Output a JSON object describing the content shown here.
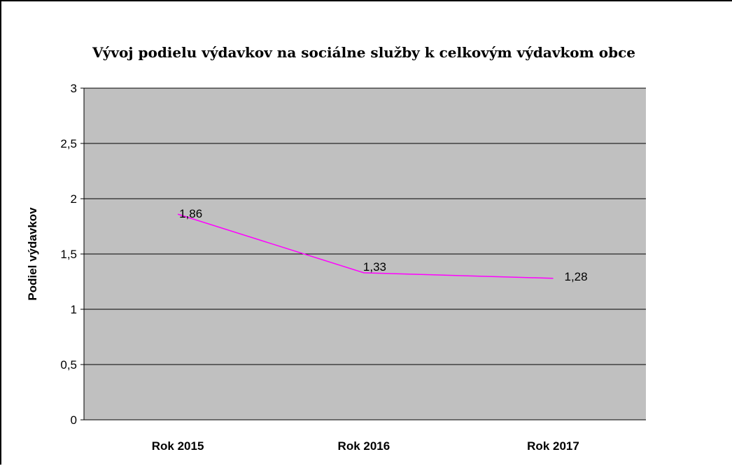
{
  "chart_data": {
    "type": "line",
    "title": "Vývoj podielu výdavkov na sociálne služby k celkovým výdavkom obce",
    "xlabel": "",
    "ylabel": "Podiel výdavkov",
    "categories": [
      "Rok 2015",
      "Rok 2016",
      "Rok 2017"
    ],
    "series": [
      {
        "values": [
          1.86,
          1.33,
          1.28
        ],
        "data_labels": [
          "1,86",
          "1,33",
          "1,28"
        ]
      }
    ],
    "ylim": [
      0,
      3
    ],
    "yticks": [
      0,
      0.5,
      1,
      1.5,
      2,
      2.5,
      3
    ],
    "ytick_labels": [
      "0",
      "0,5",
      "1",
      "1,5",
      "2",
      "2,5",
      "3"
    ],
    "grid": true,
    "legend": "none",
    "colors": {
      "plot_background": "#c0c0c0",
      "line": "#ff00ff",
      "gridline": "#000000",
      "text": "#000000"
    }
  }
}
